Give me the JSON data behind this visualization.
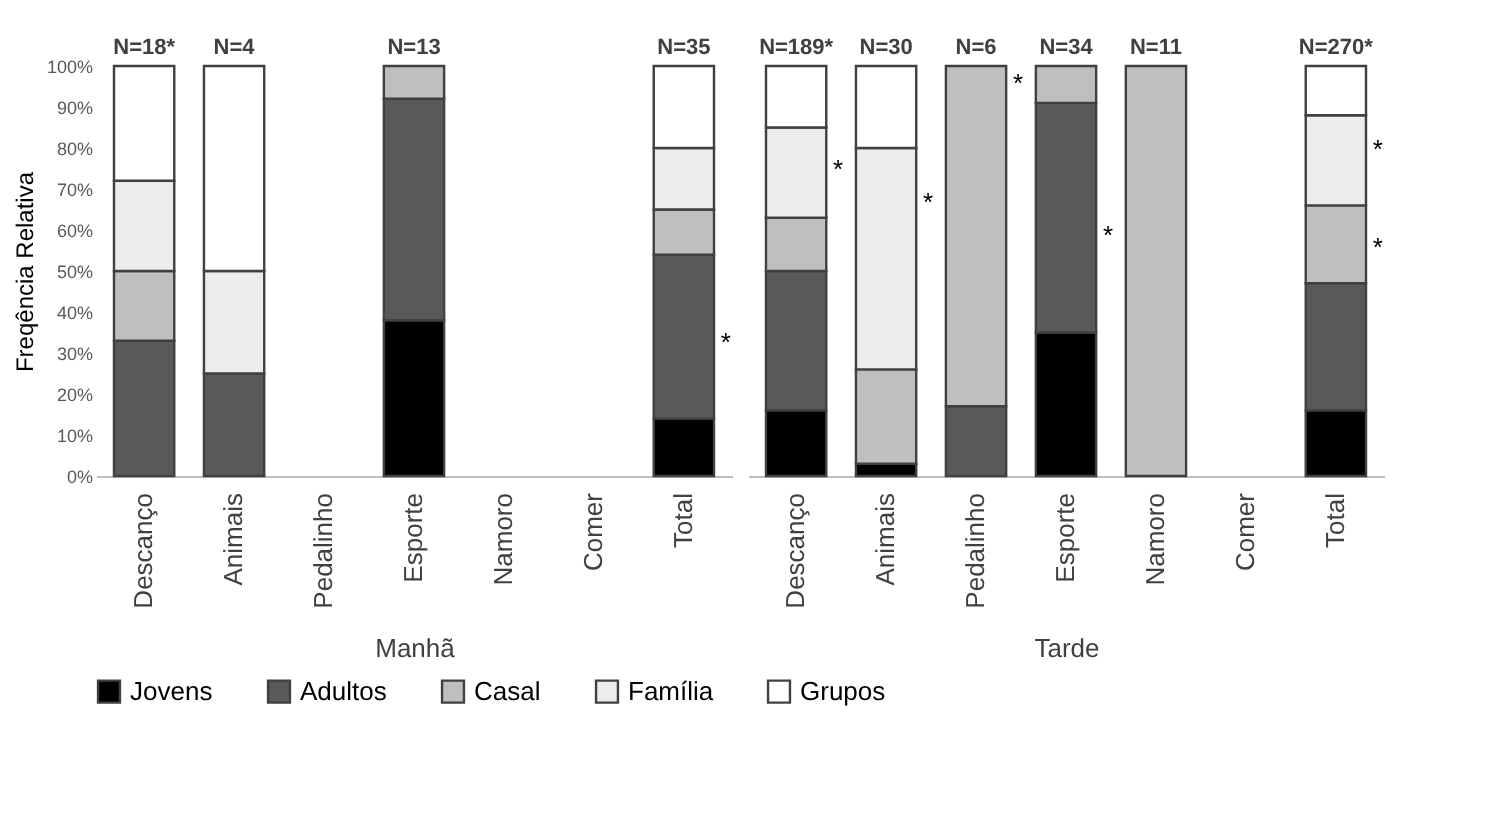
{
  "chart_data": [
    {
      "type": "bar",
      "stacked": true,
      "xlabel": "Manhã",
      "ylabel": "Freqência Relativa",
      "legend": "bottom",
      "categories": [
        "Descanço",
        "Animais",
        "Pedalinho",
        "Esporte",
        "Namoro",
        "Comer",
        "Total"
      ],
      "ylim": [
        0,
        100
      ],
      "yticks": [
        {
          "value": 0,
          "label": "0%"
        },
        {
          "value": 10,
          "label": "10%"
        },
        {
          "value": 20,
          "label": "20%"
        },
        {
          "value": 30,
          "label": "30%"
        },
        {
          "value": 40,
          "label": "40%"
        },
        {
          "value": 50,
          "label": "50%"
        },
        {
          "value": 60,
          "label": "60%"
        },
        {
          "value": 70,
          "label": "70%"
        },
        {
          "value": 80,
          "label": "80%"
        },
        {
          "value": 90,
          "label": "90%"
        },
        {
          "value": 100,
          "label": "100%"
        }
      ],
      "series": [
        {
          "name": "Jovens",
          "color": "#000000",
          "values": [
            null,
            null,
            null,
            38,
            null,
            null,
            14
          ]
        },
        {
          "name": "Adultos",
          "color": "#595959",
          "values": [
            33,
            25,
            null,
            54,
            null,
            null,
            40
          ]
        },
        {
          "name": "Casal",
          "color": "#bfbfbf",
          "values": [
            17,
            null,
            null,
            8,
            null,
            null,
            11
          ]
        },
        {
          "name": "Família",
          "color": "#ececec",
          "values": [
            22,
            25,
            null,
            null,
            null,
            null,
            15
          ]
        },
        {
          "name": "Grupos",
          "color": "#ffffff",
          "values": [
            28,
            50,
            null,
            null,
            null,
            null,
            20
          ]
        }
      ],
      "annotations": [
        {
          "text": "N=18*",
          "x": "Descanço",
          "y": 100
        },
        {
          "text": "N=4",
          "x": "Animais",
          "y": 100
        },
        {
          "text": "N=13",
          "x": "Esporte",
          "y": 100
        },
        {
          "text": "N=35",
          "x": "Total",
          "y": 100
        },
        "*"
      ]
    },
    {
      "type": "bar",
      "stacked": true,
      "xlabel": "Tarde",
      "tick_labels": "x",
      "categories": [
        "Descanço",
        "Animais",
        "Pedalinho",
        "Esporte",
        "Namoro",
        "Comer",
        "Total"
      ],
      "ylim": [
        0,
        100
      ],
      "series": [
        {
          "color": "#000000",
          "values": [
            16,
            3,
            null,
            35,
            null,
            null,
            16
          ]
        },
        {
          "color": "#595959",
          "values": [
            34,
            null,
            17,
            56,
            null,
            null,
            31
          ]
        },
        {
          "color": "#bfbfbf",
          "values": [
            13,
            23,
            83,
            9,
            100,
            null,
            19
          ]
        },
        {
          "color": "#ececec",
          "values": [
            22,
            54,
            null,
            null,
            null,
            null,
            22
          ]
        },
        {
          "color": "#ffffff",
          "values": [
            15,
            20,
            null,
            null,
            null,
            null,
            12
          ]
        }
      ],
      "annotations": [
        {
          "text": "N=189*",
          "x": "Descanço",
          "y": 100
        },
        {
          "text": "N=30",
          "x": "Animais",
          "y": 100
        },
        {
          "text": "N=6",
          "x": "Pedalinho",
          "y": 100
        },
        {
          "text": "N=34",
          "x": "Esporte",
          "y": 100
        },
        {
          "text": "N=11",
          "x": "Namoro",
          "y": 100
        },
        {
          "text": "N=270*",
          "x": "Total",
          "y": 100
        },
        "*",
        "*",
        "*",
        "*",
        "*",
        "*"
      ]
    }
  ]
}
